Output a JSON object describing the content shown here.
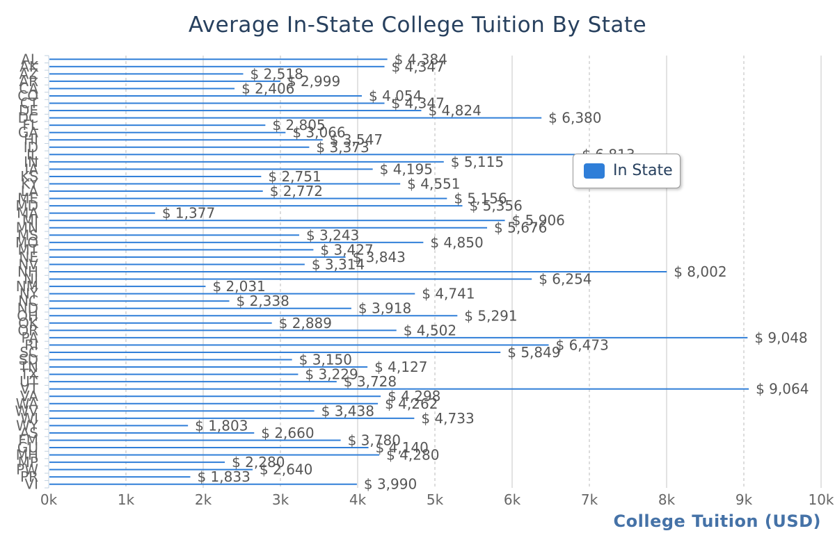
{
  "colors": {
    "bar": "#2f7ed8",
    "title": "#27405e",
    "axis_title": "#4572a7"
  },
  "chart_data": {
    "type": "bar",
    "orientation": "horizontal",
    "title": "Average In-State College Tuition By State",
    "xlabel": "College Tuition (USD)",
    "ylabel": "",
    "xlim": [
      0,
      10000
    ],
    "x_ticks": [
      "0k",
      "1k",
      "2k",
      "3k",
      "4k",
      "5k",
      "6k",
      "7k",
      "8k",
      "9k",
      "10k"
    ],
    "grid": true,
    "legend_position": "right",
    "value_prefix": "$ ",
    "categories": [
      "AL",
      "AK",
      "AZ",
      "AR",
      "CA",
      "CO",
      "CT",
      "DE",
      "DC",
      "FL",
      "GA",
      "HI",
      "ID",
      "IL",
      "IN",
      "IA",
      "KS",
      "KY",
      "LA",
      "ME",
      "MD",
      "MA",
      "MI",
      "MN",
      "MS",
      "MO",
      "MT",
      "NE",
      "NV",
      "NH",
      "NJ",
      "NM",
      "NY",
      "NC",
      "ND",
      "OH",
      "OK",
      "OR",
      "PA",
      "RI",
      "SC",
      "SD",
      "TN",
      "TX",
      "UT",
      "VT",
      "VA",
      "WA",
      "WV",
      "WI",
      "WY",
      "AS",
      "FM",
      "GU",
      "MH",
      "MP",
      "PW",
      "PR",
      "VI"
    ],
    "series": [
      {
        "name": "In State",
        "values": [
          4384,
          4347,
          2518,
          2999,
          2406,
          4054,
          4347,
          4824,
          6380,
          2805,
          3066,
          3547,
          3373,
          6813,
          5115,
          4195,
          2751,
          4551,
          2772,
          5156,
          5356,
          1377,
          5906,
          5676,
          3243,
          4850,
          3427,
          3843,
          3314,
          8002,
          6254,
          2031,
          4741,
          2338,
          3918,
          5291,
          2889,
          4502,
          9048,
          6473,
          5849,
          3150,
          4127,
          3229,
          3728,
          9064,
          4298,
          4262,
          3438,
          4733,
          1803,
          2660,
          3780,
          4140,
          4280,
          2280,
          2640,
          1833,
          3990
        ]
      }
    ]
  }
}
